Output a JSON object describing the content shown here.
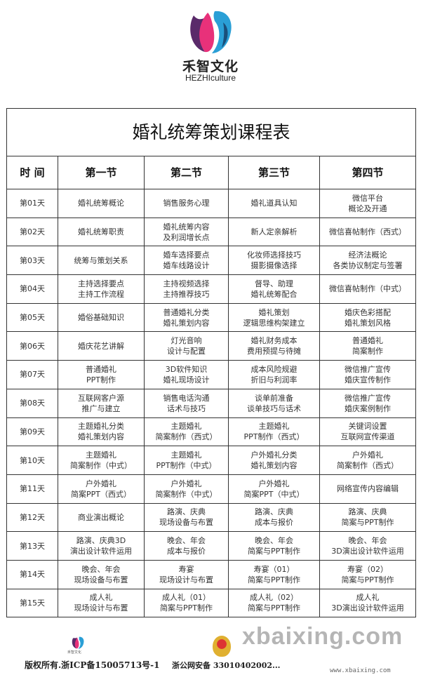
{
  "brand": {
    "name_cn": "禾智文化",
    "name_en": "HEZHIculture",
    "colors": {
      "pink": "#e8317a",
      "blue": "#2a9fd6",
      "purple": "#5a2a6a"
    }
  },
  "table": {
    "title": "婚礼统筹策划课程表",
    "headers": [
      "时  间",
      "第一节",
      "第二节",
      "第三节",
      "第四节"
    ],
    "rows": [
      [
        "第01天",
        "婚礼统筹概论",
        "销售服务心理",
        "婚礼道具认知",
        "微信平台\n概论及开通"
      ],
      [
        "第02天",
        "婚礼统筹职责",
        "婚礼统筹内容\n及利润增长点",
        "新人定亲解析",
        "微信喜帖制作（西式）"
      ],
      [
        "第03天",
        "统筹与策划关系",
        "婚车选择要点\n婚车线路设计",
        "化妆师选择技巧\n摄影摄像选择",
        "经济法概论\n各类协议制定与签署"
      ],
      [
        "第04天",
        "主持选择要点\n主持工作流程",
        "主持视频选择\n主持推荐技巧",
        "督导、助理\n婚礼统筹配合",
        "微信喜帖制作（中式）"
      ],
      [
        "第05天",
        "婚俗基础知识",
        "普通婚礼分类\n婚礼策划内容",
        "婚礼策划\n逻辑思维构架建立",
        "婚庆色彩搭配\n婚礼策划风格"
      ],
      [
        "第06天",
        "婚庆花艺讲解",
        "灯光音响\n设计与配置",
        "婚礼财务成本\n费用预提与待摊",
        "普通婚礼\n简案制作"
      ],
      [
        "第07天",
        "普通婚礼\nPPT制作",
        "3D软件知识\n婚礼现场设计",
        "成本风险规避\n折旧与利润率",
        "微信推广宣传\n婚庆宣传制作"
      ],
      [
        "第08天",
        "互联网客户源\n推广与建立",
        "销售电话沟通\n话术与技巧",
        "谈单前准备\n谈单技巧与话术",
        "微信推广宣传\n婚庆案例制作"
      ],
      [
        "第09天",
        "主题婚礼分类\n婚礼策划内容",
        "主题婚礼\n简案制作（西式）",
        "主题婚礼\nPPT制作（西式）",
        "关键词设置\n互联网宣传渠道"
      ],
      [
        "第10天",
        "主题婚礼\n简案制作（中式）",
        "主题婚礼\nPPT制作（中式）",
        "户外婚礼分类\n婚礼策划内容",
        "户外婚礼\n简案制作（西式）"
      ],
      [
        "第11天",
        "户外婚礼\n简案PPT（西式）",
        "户外婚礼\n简案制作（中式）",
        "户外婚礼\n简案PPT（中式）",
        "网络宣传内容编辑"
      ],
      [
        "第12天",
        "商业演出概论",
        "路演、庆典\n现场设备与布置",
        "路演、庆典\n成本与报价",
        "路演、庆典\n简案与PPT制作"
      ],
      [
        "第13天",
        "路演、庆典3D\n演出设计软件运用",
        "晚会、年会\n成本与报价",
        "晚会、年会\n简案与PPT制作",
        "晚会、年会\n3D演出设计软件运用"
      ],
      [
        "第14天",
        "晚会、年会\n现场设备与布置",
        "寿宴\n现场设计与布置",
        "寿宴（01）\n简案与PPT制作",
        "寿宴（02）\n简案与PPT制作"
      ],
      [
        "第15天",
        "成人礼\n现场设计与布置",
        "成人礼（01）\n简案与PPT制作",
        "成人礼（02）\n简案与PPT制作",
        "成人礼\n3D演出设计软件运用"
      ]
    ]
  },
  "footer": {
    "logo_text": "禾智文化",
    "copyright": "版权所有.浙ICP备15005713号-1",
    "police_record": "浙公网安备 33010402002...",
    "watermark": "xbaixing.com",
    "watermark_url": "www.xbaixing.com"
  }
}
